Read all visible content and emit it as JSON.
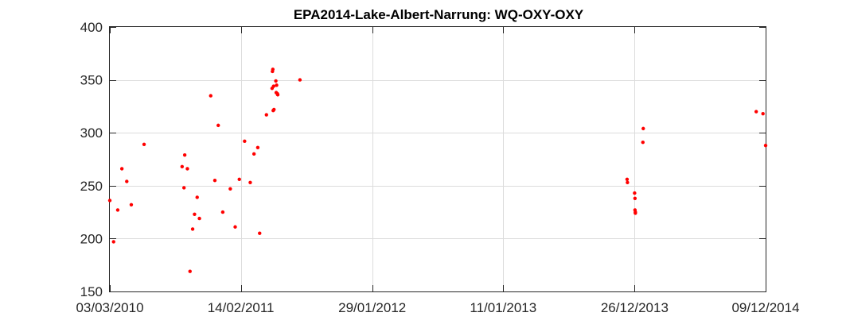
{
  "chart_data": {
    "type": "scatter",
    "title": "EPA2014-Lake-Albert-Narrung: WQ-OXY-OXY",
    "xlabel": "",
    "ylabel": "",
    "x_axis_type": "date",
    "xlim": [
      "2010-03-03",
      "2014-12-09"
    ],
    "ylim": [
      150,
      400
    ],
    "x_tick_values": [
      "2010-03-03",
      "2011-02-14",
      "2012-01-29",
      "2013-01-11",
      "2013-12-26",
      "2014-12-09"
    ],
    "x_tick_labels": [
      "03/03/2010",
      "14/02/2011",
      "29/01/2012",
      "11/01/2013",
      "26/12/2013",
      "09/12/2014"
    ],
    "y_ticks": [
      150,
      200,
      250,
      300,
      350,
      400
    ],
    "y_tick_labels": [
      "150",
      "200",
      "250",
      "300",
      "350",
      "400"
    ],
    "grid": true,
    "legend": "none",
    "marker_color": "#ff0000",
    "series": [
      {
        "x": [
          "2010-03-03",
          "2010-03-13",
          "2010-03-24",
          "2010-04-04",
          "2010-04-17",
          "2010-04-29",
          "2010-06-02",
          "2010-09-11",
          "2010-09-16",
          "2010-09-18",
          "2010-09-25",
          "2010-10-02",
          "2010-10-09",
          "2010-10-14",
          "2010-10-21",
          "2010-10-27",
          "2010-11-26",
          "2010-12-07",
          "2010-12-16",
          "2010-12-28",
          "2011-01-17",
          "2011-01-30",
          "2011-02-10",
          "2011-02-24",
          "2011-03-11",
          "2011-03-21",
          "2011-03-31",
          "2011-04-05",
          "2011-04-23",
          "2011-05-08",
          "2011-05-09",
          "2011-05-10",
          "2011-05-11",
          "2011-05-12",
          "2011-05-13",
          "2011-05-18",
          "2011-05-19",
          "2011-05-20",
          "2011-05-22",
          "2011-05-23",
          "2011-05-23",
          "2011-07-21",
          "2013-12-06",
          "2013-12-07",
          "2013-12-26",
          "2013-12-27",
          "2013-12-27",
          "2013-12-28",
          "2013-12-28",
          "2014-01-17",
          "2014-01-18",
          "2014-11-14",
          "2014-12-02",
          "2014-12-09"
        ],
        "y": [
          236,
          197,
          227,
          266,
          254,
          232,
          289,
          268,
          248,
          279,
          266,
          169,
          209,
          223,
          239,
          219,
          335,
          255,
          307,
          225,
          247,
          211,
          256,
          292,
          253,
          280,
          286,
          205,
          317,
          342,
          358,
          360,
          321,
          344,
          322,
          349,
          338,
          345,
          337,
          336,
          336,
          350,
          256,
          253,
          243,
          238,
          227,
          225,
          224,
          291,
          304,
          320,
          318,
          288
        ]
      }
    ]
  }
}
